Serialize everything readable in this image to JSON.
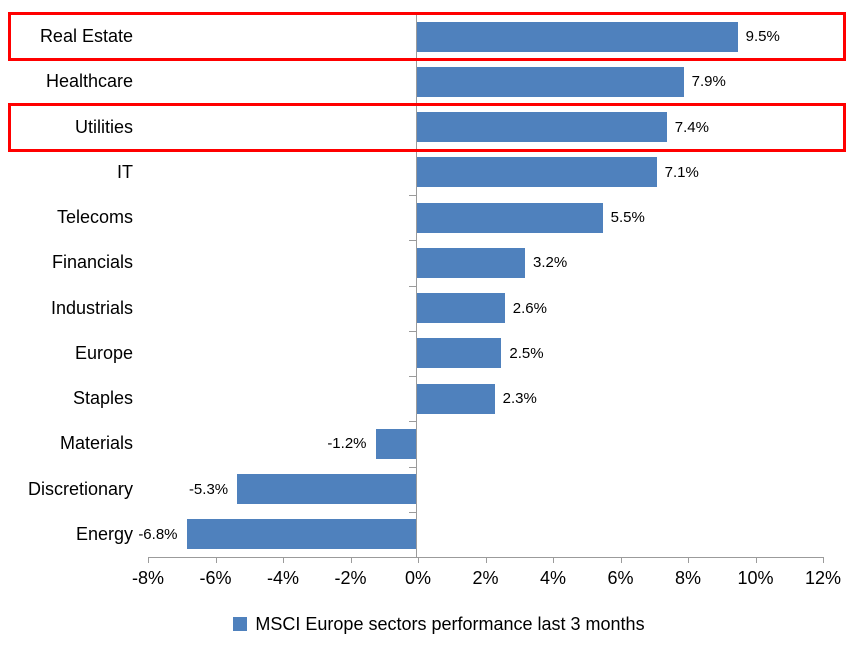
{
  "chart_data": {
    "type": "bar",
    "orientation": "horizontal",
    "categories": [
      "Real Estate",
      "Healthcare",
      "Utilities",
      "IT",
      "Telecoms",
      "Financials",
      "Industrials",
      "Europe",
      "Staples",
      "Materials",
      "Discretionary",
      "Energy"
    ],
    "values": [
      9.5,
      7.9,
      7.4,
      7.1,
      5.5,
      3.2,
      2.6,
      2.5,
      2.3,
      -1.2,
      -5.3,
      -6.8
    ],
    "value_labels": [
      "9.5%",
      "7.9%",
      "7.4%",
      "7.1%",
      "5.5%",
      "3.2%",
      "2.6%",
      "2.5%",
      "2.3%",
      "-1.2%",
      "-5.3%",
      "-6.8%"
    ],
    "xlim": [
      -8,
      12
    ],
    "x_tick_step": 2,
    "x_tick_labels": [
      "-8%",
      "-6%",
      "-4%",
      "-2%",
      "0%",
      "2%",
      "4%",
      "6%",
      "8%",
      "10%",
      "12%"
    ],
    "grid": false,
    "legend_position": "bottom",
    "legend": "MSCI Europe sectors performance last 3 months",
    "bar_color": "#4F81BD",
    "axis_color": "#9B9B9B",
    "text_color": "#000000",
    "highlight_color": "#FF0000",
    "highlighted_categories": [
      "Real Estate",
      "Utilities"
    ]
  }
}
